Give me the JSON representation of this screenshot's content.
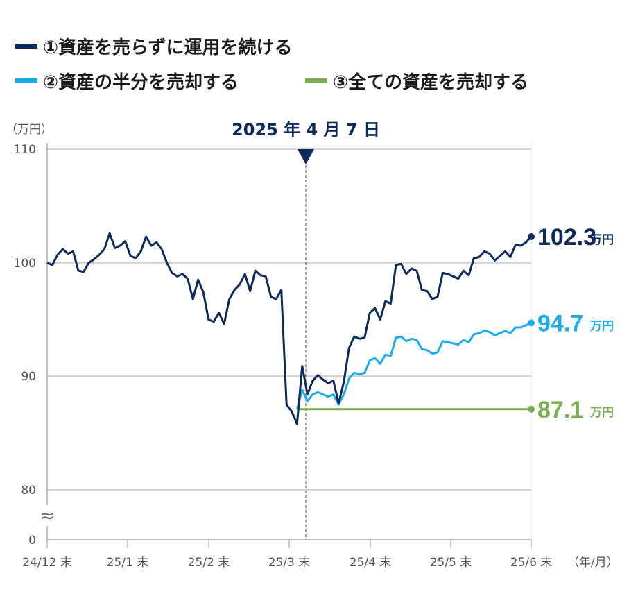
{
  "chart_data": {
    "type": "line",
    "yunit": "（万円）",
    "xunit": "（年/月）",
    "yticks": [
      "110",
      "100",
      "90",
      "80",
      "0"
    ],
    "ylim": [
      80,
      110
    ],
    "y_break": true,
    "break_symbol": "≈",
    "xticks": [
      "24/12 末",
      "25/1 末",
      "25/2 末",
      "25/3 末",
      "25/4 末",
      "25/5 末",
      "25/6 末"
    ],
    "event_label": "2025 年 4 月 7 日",
    "colors": {
      "s1": "#0d2a5c",
      "s2": "#1aabf0",
      "s3": "#7ab04f"
    },
    "series": [
      {
        "name": "①資産を売らずに運用を続ける",
        "end_value": "102.3",
        "end_unit": "万円",
        "values": [
          100.0,
          99.8,
          100.7,
          101.2,
          100.8,
          101.0,
          99.3,
          99.2,
          100.0,
          100.3,
          100.7,
          101.2,
          102.6,
          101.3,
          101.5,
          101.9,
          100.6,
          100.4,
          101.0,
          102.3,
          101.5,
          101.8,
          101.2,
          100.0,
          99.1,
          98.8,
          99.0,
          98.6,
          96.8,
          98.5,
          97.4,
          95.0,
          94.8,
          95.6,
          94.6,
          96.8,
          97.6,
          98.1,
          99.0,
          97.5,
          99.3,
          98.9,
          98.8,
          97.0,
          96.8,
          97.6,
          87.5,
          86.9,
          85.8,
          90.9,
          88.4,
          89.6,
          90.1,
          89.7,
          89.4,
          89.6,
          87.6,
          89.5,
          92.5,
          93.5,
          93.3,
          93.4,
          95.6,
          96.0,
          95.0,
          96.6,
          96.4,
          99.8,
          99.9,
          99.0,
          99.5,
          99.3,
          97.6,
          97.5,
          96.8,
          97.0,
          99.1,
          99.0,
          98.8,
          98.6,
          99.3,
          98.9,
          100.4,
          100.5,
          101.0,
          100.8,
          100.2,
          100.6,
          101.0,
          100.5,
          101.6,
          101.5,
          101.8,
          102.3
        ]
      },
      {
        "name": "②資産の半分を売却する",
        "end_value": "94.7",
        "end_unit": "万円",
        "values": [
          null,
          null,
          null,
          null,
          null,
          null,
          null,
          null,
          null,
          null,
          null,
          null,
          null,
          null,
          null,
          null,
          null,
          null,
          null,
          null,
          null,
          null,
          null,
          null,
          null,
          null,
          null,
          null,
          null,
          null,
          null,
          null,
          null,
          null,
          null,
          null,
          null,
          null,
          null,
          null,
          null,
          null,
          null,
          null,
          null,
          null,
          null,
          null,
          87.1,
          88.8,
          87.8,
          88.4,
          88.6,
          88.4,
          88.2,
          88.4,
          87.5,
          88.4,
          89.8,
          90.3,
          90.2,
          90.3,
          91.4,
          91.6,
          91.1,
          91.9,
          91.8,
          93.4,
          93.5,
          93.1,
          93.3,
          93.2,
          92.4,
          92.3,
          92.0,
          92.1,
          93.1,
          93.0,
          92.9,
          92.8,
          93.2,
          93.0,
          93.7,
          93.8,
          94.0,
          93.9,
          93.6,
          93.8,
          94.0,
          93.8,
          94.3,
          94.3,
          94.5,
          94.7
        ]
      },
      {
        "name": "③全ての資産を売却する",
        "end_value": "87.1",
        "end_unit": "万円",
        "values": [
          null,
          null,
          null,
          null,
          null,
          null,
          null,
          null,
          null,
          null,
          null,
          null,
          null,
          null,
          null,
          null,
          null,
          null,
          null,
          null,
          null,
          null,
          null,
          null,
          null,
          null,
          null,
          null,
          null,
          null,
          null,
          null,
          null,
          null,
          null,
          null,
          null,
          null,
          null,
          null,
          null,
          null,
          null,
          null,
          null,
          null,
          null,
          null,
          87.1,
          87.1,
          87.1,
          87.1,
          87.1,
          87.1,
          87.1,
          87.1,
          87.1,
          87.1,
          87.1,
          87.1,
          87.1,
          87.1,
          87.1,
          87.1,
          87.1,
          87.1,
          87.1,
          87.1,
          87.1,
          87.1,
          87.1,
          87.1,
          87.1,
          87.1,
          87.1,
          87.1,
          87.1,
          87.1,
          87.1,
          87.1,
          87.1,
          87.1,
          87.1,
          87.1,
          87.1,
          87.1,
          87.1,
          87.1,
          87.1,
          87.1,
          87.1,
          87.1,
          87.1,
          87.1
        ]
      }
    ]
  }
}
